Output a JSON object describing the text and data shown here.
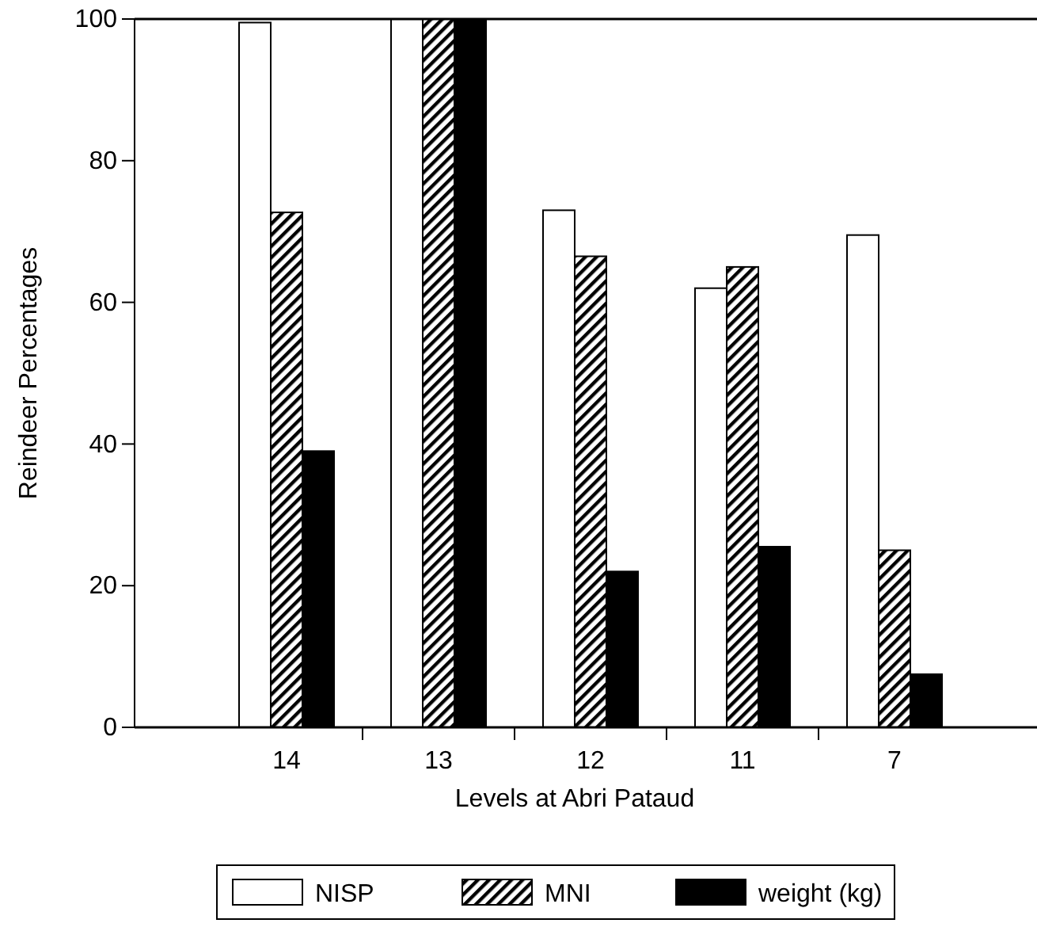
{
  "chart_data": {
    "type": "bar",
    "xlabel": "Levels at Abri Pataud",
    "ylabel": "Reindeer Percentages",
    "categories": [
      "14",
      "13",
      "12",
      "11",
      "7"
    ],
    "series": [
      {
        "name": "NISP",
        "color": "#ffffff",
        "values": [
          99.5,
          100,
          73,
          62,
          69.5
        ]
      },
      {
        "name": "MNI",
        "color": "#000000",
        "values": [
          72.7,
          100,
          66.5,
          65,
          25
        ]
      },
      {
        "name": "weight (kg)",
        "color": "#000000",
        "values": [
          39,
          100,
          22,
          25.5,
          7.5
        ]
      }
    ],
    "ylim": [
      0,
      100
    ],
    "yticks": [
      0,
      20,
      40,
      60,
      80,
      100
    ],
    "legend": "bottom"
  }
}
